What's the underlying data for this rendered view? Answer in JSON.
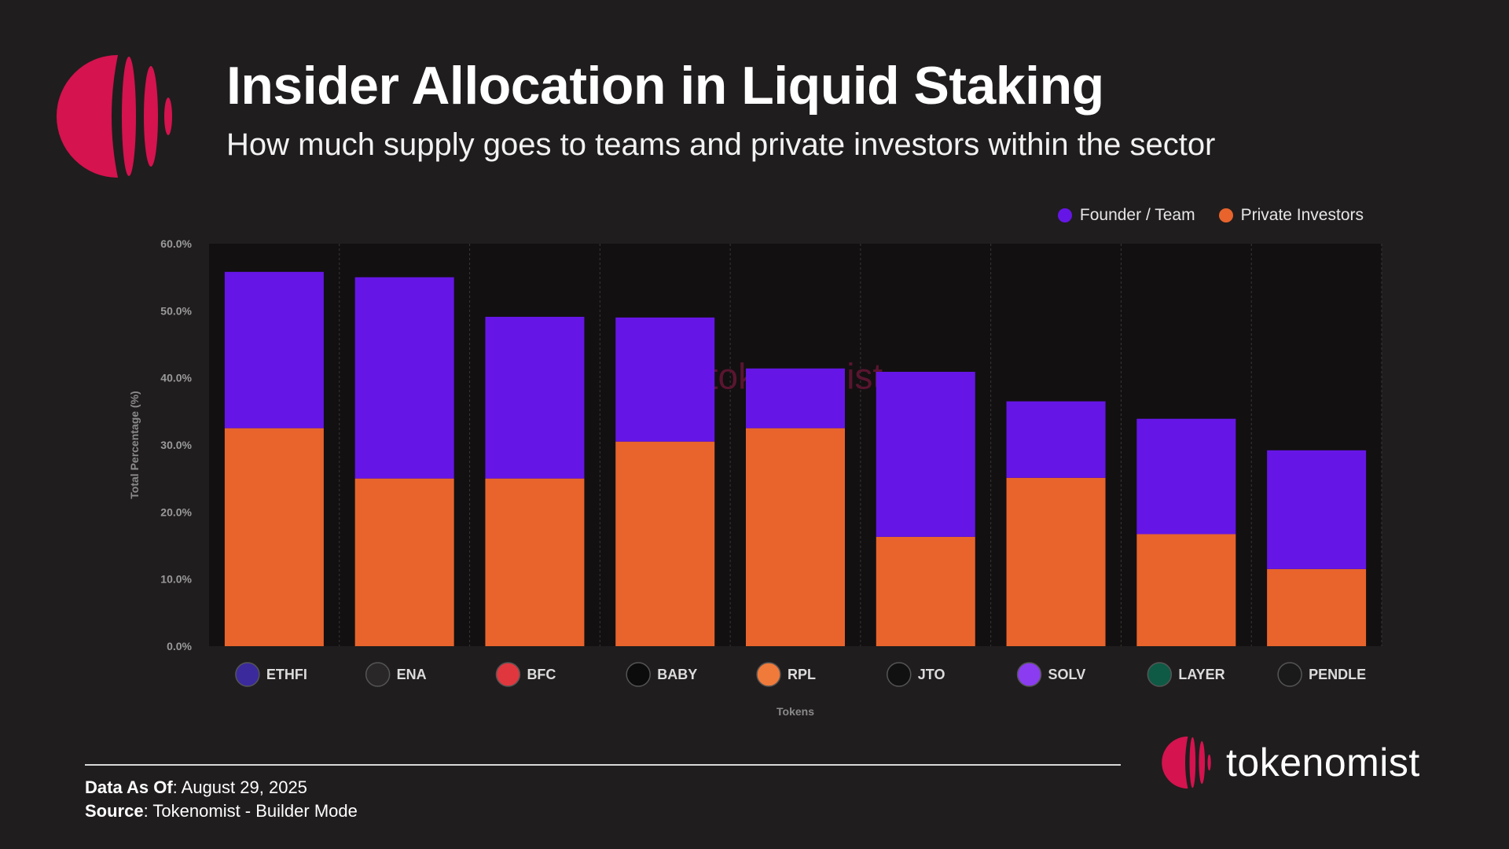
{
  "header": {
    "title": "Insider Allocation in Liquid Staking",
    "subtitle": "How much supply goes to teams and private investors within the sector"
  },
  "colors": {
    "team": "#6516e6",
    "investors": "#e8642c",
    "brand": "#d4134f"
  },
  "chart_data": {
    "type": "bar",
    "stacked": true,
    "categories": [
      "ETHFI",
      "ENA",
      "BFC",
      "BABY",
      "RPL",
      "JTO",
      "SOLV",
      "LAYER",
      "PENDLE"
    ],
    "category_icons": [
      "ethfi-icon",
      "ena-icon",
      "bfc-icon",
      "baby-icon",
      "rpl-icon",
      "jto-icon",
      "solv-icon",
      "layer-icon",
      "pendle-icon"
    ],
    "series": [
      {
        "name": "Private Investors",
        "values": [
          32.5,
          25.0,
          25.0,
          30.5,
          32.5,
          16.3,
          25.1,
          16.7,
          11.5
        ]
      },
      {
        "name": "Founder / Team",
        "values": [
          23.3,
          30.0,
          24.1,
          18.5,
          8.9,
          24.6,
          11.4,
          17.2,
          17.7
        ]
      }
    ],
    "legend": [
      "Founder / Team",
      "Private Investors"
    ],
    "legend_position": "top-right",
    "xlabel": "Tokens",
    "ylabel": "Total Percentage (%)",
    "ylim": [
      0,
      60
    ],
    "yticks": [
      "0.0%",
      "10.0%",
      "20.0%",
      "30.0%",
      "40.0%",
      "50.0%",
      "60.0%"
    ],
    "watermark": "tokenomist"
  },
  "footer": {
    "data_as_of_label": "Data As Of",
    "data_as_of_value": ": August 29, 2025",
    "source_label": "Source",
    "source_value": ": Tokenomist - Builder Mode"
  },
  "brand": {
    "name": "tokenomist"
  }
}
